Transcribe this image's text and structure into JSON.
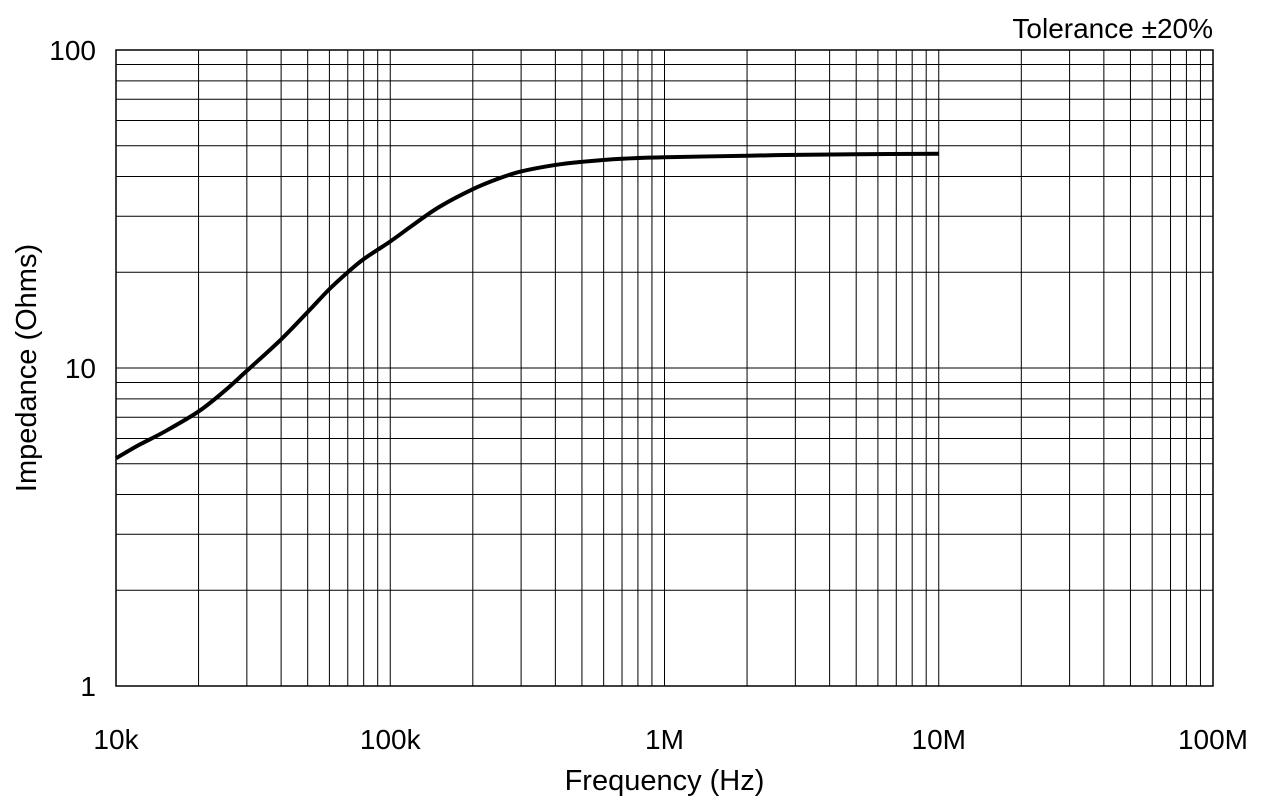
{
  "chart_data": {
    "type": "line",
    "title": "",
    "annotation": "Tolerance ±20%",
    "xlabel": "Frequency (Hz)",
    "ylabel": "Impedance (Ohms)",
    "xscale": "log",
    "yscale": "log",
    "xlim": [
      10000,
      100000000
    ],
    "ylim": [
      1,
      100
    ],
    "grid": true,
    "x_tick_labels": [
      {
        "value": 10000,
        "label": "10k"
      },
      {
        "value": 100000,
        "label": "100k"
      },
      {
        "value": 1000000,
        "label": "1M"
      },
      {
        "value": 10000000,
        "label": "10M"
      },
      {
        "value": 100000000,
        "label": "100M"
      }
    ],
    "y_tick_labels": [
      {
        "value": 1,
        "label": "1"
      },
      {
        "value": 10,
        "label": "10"
      },
      {
        "value": 100,
        "label": "100"
      }
    ],
    "line_color": "#000000",
    "grid_color": "#000000",
    "series": [
      {
        "x": [
          10000,
          12000,
          15000,
          20000,
          25000,
          30000,
          40000,
          50000,
          60000,
          70000,
          80000,
          100000,
          120000,
          150000,
          200000,
          250000,
          300000,
          400000,
          500000,
          700000,
          1000000,
          2000000,
          3000000,
          5000000,
          10000000
        ],
        "y": [
          5.2,
          5.7,
          6.3,
          7.3,
          8.5,
          9.8,
          12.3,
          15.0,
          17.7,
          20.0,
          22.0,
          25.0,
          28.0,
          32.0,
          36.5,
          39.5,
          41.5,
          43.5,
          44.5,
          45.5,
          46.0,
          46.5,
          46.8,
          47.0,
          47.2
        ]
      }
    ]
  }
}
